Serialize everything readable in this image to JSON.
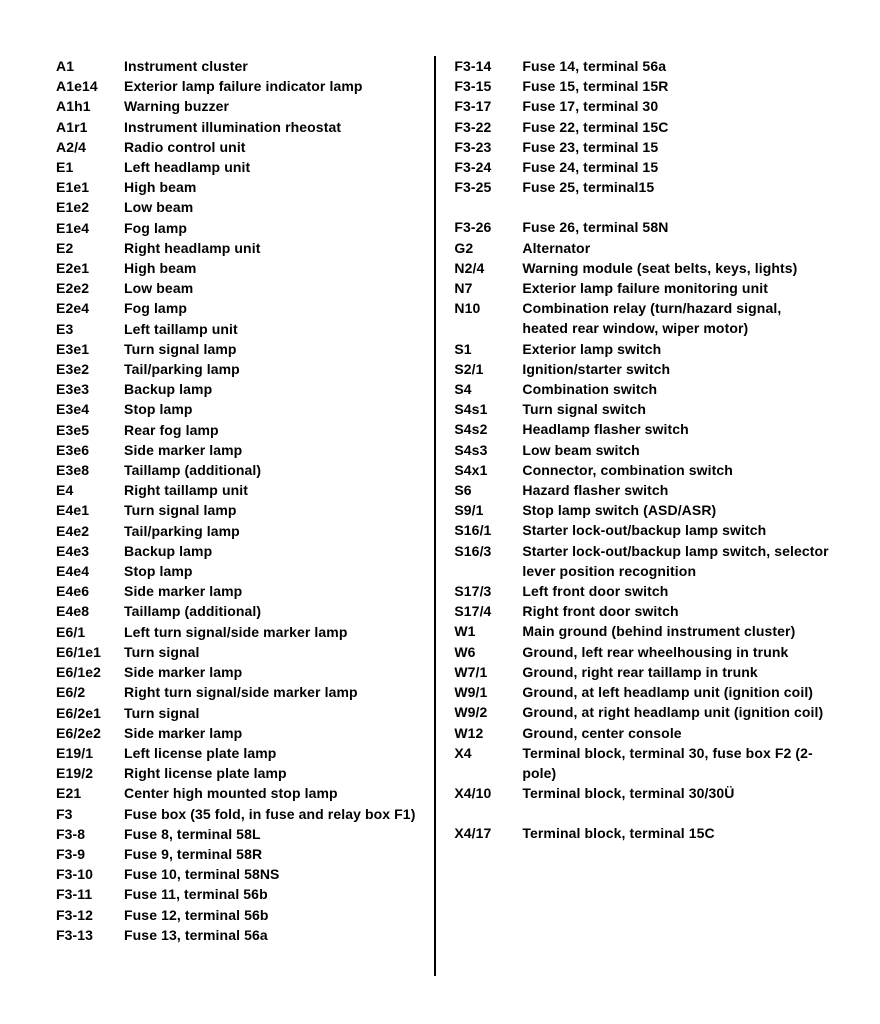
{
  "left": [
    {
      "code": "A1",
      "desc": "Instrument cluster"
    },
    {
      "code": "A1e14",
      "desc": "Exterior lamp failure indicator lamp"
    },
    {
      "code": "A1h1",
      "desc": "Warning buzzer"
    },
    {
      "code": "A1r1",
      "desc": "Instrument illumination rheostat"
    },
    {
      "code": "A2/4",
      "desc": "Radio control unit"
    },
    {
      "code": "E1",
      "desc": "Left headlamp unit"
    },
    {
      "code": "E1e1",
      "desc": "High beam"
    },
    {
      "code": "E1e2",
      "desc": "Low beam"
    },
    {
      "code": "E1e4",
      "desc": "Fog lamp"
    },
    {
      "code": "E2",
      "desc": "Right headlamp unit"
    },
    {
      "code": "E2e1",
      "desc": "High beam"
    },
    {
      "code": "E2e2",
      "desc": "Low beam"
    },
    {
      "code": "E2e4",
      "desc": "Fog lamp"
    },
    {
      "code": "E3",
      "desc": "Left taillamp unit"
    },
    {
      "code": "E3e1",
      "desc": "Turn signal lamp"
    },
    {
      "code": "E3e2",
      "desc": "Tail/parking lamp"
    },
    {
      "code": "E3e3",
      "desc": "Backup lamp"
    },
    {
      "code": "E3e4",
      "desc": "Stop lamp"
    },
    {
      "code": "E3e5",
      "desc": "Rear fog lamp"
    },
    {
      "code": "E3e6",
      "desc": "Side marker lamp"
    },
    {
      "code": "E3e8",
      "desc": "Taillamp (additional)"
    },
    {
      "code": "E4",
      "desc": "Right taillamp unit"
    },
    {
      "code": "E4e1",
      "desc": "Turn signal lamp"
    },
    {
      "code": "E4e2",
      "desc": "Tail/parking lamp"
    },
    {
      "code": "E4e3",
      "desc": "Backup lamp"
    },
    {
      "code": "E4e4",
      "desc": "Stop lamp"
    },
    {
      "code": "E4e6",
      "desc": "Side marker lamp"
    },
    {
      "code": "E4e8",
      "desc": "Taillamp (additional)"
    },
    {
      "code": "E6/1",
      "desc": "Left turn signal/side marker lamp"
    },
    {
      "code": "E6/1e1",
      "desc": "Turn signal"
    },
    {
      "code": "E6/1e2",
      "desc": "Side marker lamp"
    },
    {
      "code": "E6/2",
      "desc": "Right turn signal/side marker lamp"
    },
    {
      "code": "E6/2e1",
      "desc": "Turn signal"
    },
    {
      "code": "E6/2e2",
      "desc": "Side marker lamp"
    },
    {
      "code": "E19/1",
      "desc": "Left license plate lamp"
    },
    {
      "code": "E19/2",
      "desc": "Right license plate lamp"
    },
    {
      "code": "E21",
      "desc": "Center high mounted stop lamp"
    },
    {
      "code": "F3",
      "desc": "Fuse box (35 fold, in fuse and relay box F1)"
    },
    {
      "code": "F3-8",
      "desc": "Fuse 8, terminal 58L"
    },
    {
      "code": "F3-9",
      "desc": "Fuse 9, terminal 58R"
    },
    {
      "code": "F3-10",
      "desc": "Fuse 10, terminal 58NS"
    },
    {
      "code": "F3-11",
      "desc": "Fuse 11, terminal 56b"
    },
    {
      "code": "F3-12",
      "desc": "Fuse 12, terminal 56b"
    },
    {
      "code": "F3-13",
      "desc": "Fuse 13, terminal 56a"
    }
  ],
  "right": [
    {
      "code": "F3-14",
      "desc": "Fuse 14, terminal 56a"
    },
    {
      "code": "F3-15",
      "desc": "Fuse 15, terminal 15R"
    },
    {
      "code": "F3-17",
      "desc": "Fuse 17, terminal 30"
    },
    {
      "code": "F3-22",
      "desc": "Fuse 22, terminal 15C"
    },
    {
      "code": "F3-23",
      "desc": "Fuse 23, terminal 15"
    },
    {
      "code": "F3-24",
      "desc": "Fuse 24, terminal 15"
    },
    {
      "code": "F3-25",
      "desc": "Fuse 25, terminal15"
    },
    {
      "gap": true
    },
    {
      "code": "F3-26",
      "desc": "Fuse 26, terminal 58N"
    },
    {
      "code": "G2",
      "desc": "Alternator"
    },
    {
      "code": "N2/4",
      "desc": "Warning module (seat belts, keys, lights)"
    },
    {
      "code": "N7",
      "desc": "Exterior lamp failure monitoring unit"
    },
    {
      "code": "N10",
      "desc": "Combination relay (turn/hazard signal,"
    },
    {
      "code": "",
      "desc": "heated rear window, wiper motor)"
    },
    {
      "code": "S1",
      "desc": "Exterior lamp switch"
    },
    {
      "code": "S2/1",
      "desc": "Ignition/starter switch"
    },
    {
      "code": "S4",
      "desc": "Combination switch"
    },
    {
      "code": "S4s1",
      "desc": "Turn signal switch"
    },
    {
      "code": "S4s2",
      "desc": "Headlamp flasher switch"
    },
    {
      "code": "S4s3",
      "desc": "Low beam switch"
    },
    {
      "code": "S4x1",
      "desc": "Connector, combination switch"
    },
    {
      "code": "S6",
      "desc": "Hazard flasher switch"
    },
    {
      "code": "S9/1",
      "desc": "Stop lamp switch (ASD/ASR)"
    },
    {
      "code": "S16/1",
      "desc": "Starter lock-out/backup lamp switch"
    },
    {
      "code": "S16/3",
      "desc": "Starter lock-out/backup lamp switch, selector lever position recognition"
    },
    {
      "code": "S17/3",
      "desc": "Left front door switch"
    },
    {
      "code": "S17/4",
      "desc": "Right front door switch"
    },
    {
      "code": "W1",
      "desc": "Main ground (behind instrument cluster)"
    },
    {
      "code": "W6",
      "desc": "Ground, left rear wheelhousing in trunk"
    },
    {
      "code": "W7/1",
      "desc": "Ground, right rear taillamp in trunk"
    },
    {
      "code": "W9/1",
      "desc": "Ground, at left headlamp unit (ignition coil)"
    },
    {
      "code": "W9/2",
      "desc": "Ground, at right headlamp unit (ignition coil)"
    },
    {
      "code": "W12",
      "desc": "Ground, center console"
    },
    {
      "code": "X4",
      "desc": "Terminal block, terminal 30, fuse box F2 (2-pole)"
    },
    {
      "code": "X4/10",
      "desc": "Terminal block, terminal 30/30Ü"
    },
    {
      "gap": true
    },
    {
      "code": "X4/17",
      "desc": "Terminal block, terminal 15C"
    }
  ]
}
